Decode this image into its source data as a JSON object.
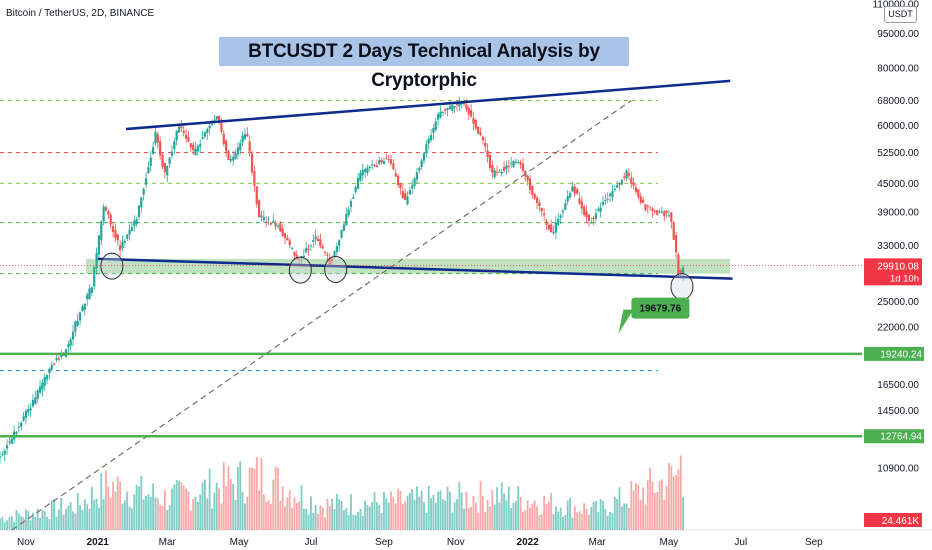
{
  "header": {
    "symbol_title": "Bitcoin / TetherUS, 2D, BINANCE",
    "analysis_title": "BTCUSDT 2 Days Technical Analysis by Cryptorphic",
    "currency_button": "USDT"
  },
  "colors": {
    "up": "#26a69a",
    "down": "#ef5350",
    "trendline": "#0d2a8c",
    "support_zone": "#a5d6a7",
    "green_level": "#4caf50",
    "title_bg": "#a9c4e6",
    "price_tag": "#f23645"
  },
  "chart_data": {
    "type": "candlestick",
    "title": "BTCUSDT 2 Days Technical Analysis by Cryptorphic",
    "subtitle": "Bitcoin / TetherUS, 2D, BINANCE",
    "y_scale": "log",
    "ylim": [
      8000,
      110000
    ],
    "y_ticks": [
      {
        "value": 110000,
        "label": "110000.00"
      },
      {
        "value": 95000,
        "label": "95000.00"
      },
      {
        "value": 80000,
        "label": "80000.00"
      },
      {
        "value": 68000,
        "label": "68000.00"
      },
      {
        "value": 60000,
        "label": "60000.00"
      },
      {
        "value": 52500,
        "label": "52500.00"
      },
      {
        "value": 45000,
        "label": "45000.00"
      },
      {
        "value": 39000,
        "label": "39000.00"
      },
      {
        "value": 33000,
        "label": "33000.00"
      },
      {
        "value": 25000,
        "label": "25000.00"
      },
      {
        "value": 22000,
        "label": "22000.00"
      },
      {
        "value": 16500,
        "label": "16500.00"
      },
      {
        "value": 14500,
        "label": "14500.00"
      },
      {
        "value": 10900,
        "label": "10900.00"
      }
    ],
    "x_range": [
      "2020-10-10",
      "2022-09-30"
    ],
    "x_ticks": [
      {
        "date": "2020-11-01",
        "label": "Nov",
        "bold": false
      },
      {
        "date": "2021-01-01",
        "label": "2021",
        "bold": true
      },
      {
        "date": "2021-03-01",
        "label": "Mar",
        "bold": false
      },
      {
        "date": "2021-05-01",
        "label": "May",
        "bold": false
      },
      {
        "date": "2021-07-01",
        "label": "Jul",
        "bold": false
      },
      {
        "date": "2021-09-01",
        "label": "Sep",
        "bold": false
      },
      {
        "date": "2021-11-01",
        "label": "Nov",
        "bold": false
      },
      {
        "date": "2022-01-01",
        "label": "2022",
        "bold": true
      },
      {
        "date": "2022-03-01",
        "label": "Mar",
        "bold": false
      },
      {
        "date": "2022-05-01",
        "label": "May",
        "bold": false
      },
      {
        "date": "2022-07-01",
        "label": "Jul",
        "bold": false
      },
      {
        "date": "2022-09-01",
        "label": "Sep",
        "bold": false
      }
    ],
    "price_path": [
      {
        "date": "2020-10-10",
        "price": 11300
      },
      {
        "date": "2020-10-25",
        "price": 13100
      },
      {
        "date": "2020-11-10",
        "price": 15300
      },
      {
        "date": "2020-11-25",
        "price": 18300
      },
      {
        "date": "2020-12-05",
        "price": 19100
      },
      {
        "date": "2020-12-17",
        "price": 23000
      },
      {
        "date": "2020-12-29",
        "price": 27000
      },
      {
        "date": "2021-01-08",
        "price": 40500
      },
      {
        "date": "2021-01-22",
        "price": 32500
      },
      {
        "date": "2021-02-05",
        "price": 38000
      },
      {
        "date": "2021-02-21",
        "price": 57500
      },
      {
        "date": "2021-03-01",
        "price": 47000
      },
      {
        "date": "2021-03-13",
        "price": 60500
      },
      {
        "date": "2021-03-25",
        "price": 52500
      },
      {
        "date": "2021-04-14",
        "price": 63500
      },
      {
        "date": "2021-04-25",
        "price": 49500
      },
      {
        "date": "2021-05-09",
        "price": 58500
      },
      {
        "date": "2021-05-20",
        "price": 38000
      },
      {
        "date": "2021-06-05",
        "price": 36500
      },
      {
        "date": "2021-06-22",
        "price": 30500
      },
      {
        "date": "2021-07-07",
        "price": 34500
      },
      {
        "date": "2021-07-20",
        "price": 30200
      },
      {
        "date": "2021-08-14",
        "price": 47500
      },
      {
        "date": "2021-09-07",
        "price": 51000
      },
      {
        "date": "2021-09-21",
        "price": 41000
      },
      {
        "date": "2021-10-20",
        "price": 64000
      },
      {
        "date": "2021-11-10",
        "price": 67500
      },
      {
        "date": "2021-11-27",
        "price": 55000
      },
      {
        "date": "2021-12-04",
        "price": 47000
      },
      {
        "date": "2021-12-27",
        "price": 50500
      },
      {
        "date": "2022-01-10",
        "price": 41000
      },
      {
        "date": "2022-01-24",
        "price": 35000
      },
      {
        "date": "2022-02-10",
        "price": 44500
      },
      {
        "date": "2022-02-24",
        "price": 37000
      },
      {
        "date": "2022-03-28",
        "price": 47500
      },
      {
        "date": "2022-04-12",
        "price": 40000
      },
      {
        "date": "2022-04-24",
        "price": 39000
      },
      {
        "date": "2022-05-04",
        "price": 38500
      },
      {
        "date": "2022-05-08",
        "price": 33000
      },
      {
        "date": "2022-05-12",
        "price": 27500
      },
      {
        "date": "2022-05-14",
        "price": 29910.08
      }
    ],
    "volume_path": [
      {
        "date": "2020-10-10",
        "rel": 0.12
      },
      {
        "date": "2020-12-15",
        "rel": 0.25
      },
      {
        "date": "2021-01-10",
        "rel": 0.45
      },
      {
        "date": "2021-03-01",
        "rel": 0.32
      },
      {
        "date": "2021-05-20",
        "rel": 0.55
      },
      {
        "date": "2021-07-10",
        "rel": 0.25
      },
      {
        "date": "2021-09-10",
        "rel": 0.28
      },
      {
        "date": "2021-12-05",
        "rel": 0.35
      },
      {
        "date": "2022-03-01",
        "rel": 0.2
      },
      {
        "date": "2022-05-09",
        "rel": 0.55
      },
      {
        "date": "2022-05-12",
        "rel": 1.0
      },
      {
        "date": "2022-05-14",
        "rel": 0.15
      }
    ],
    "volume_label": "24.461K",
    "dashed_levels": [
      {
        "price": 68000,
        "color": "#8bc34a"
      },
      {
        "price": 52500,
        "color": "#ef5350"
      },
      {
        "price": 45000,
        "color": "#8bc34a"
      },
      {
        "price": 37000,
        "color": "#4caf50"
      },
      {
        "price": 28700,
        "color": "#4caf50"
      },
      {
        "price": 17700,
        "color": "#2196f3"
      }
    ],
    "horizontal_levels": [
      {
        "price": 19240.24,
        "label": "19240.24"
      },
      {
        "price": 12764.94,
        "label": "12764.94"
      }
    ],
    "support_zone": {
      "from_date": "2020-12-22",
      "to_date": "2022-06-22",
      "low": 28700,
      "high": 30900
    },
    "trendlines": [
      {
        "from": {
          "date": "2021-01-25",
          "price": 59000
        },
        "to": {
          "date": "2022-06-22",
          "price": 75000
        }
      },
      {
        "from": {
          "date": "2021-01-01",
          "price": 30900
        },
        "to": {
          "date": "2022-06-24",
          "price": 28000
        }
      }
    ],
    "diagonal_line": {
      "from": {
        "date": "2020-10-20",
        "price": 8000
      },
      "to": {
        "date": "2022-03-30",
        "price": 68000
      }
    },
    "circles": [
      {
        "date": "2021-01-13",
        "price": 29800
      },
      {
        "date": "2021-06-22",
        "price": 29200
      },
      {
        "date": "2021-07-22",
        "price": 29300
      },
      {
        "date": "2022-05-12",
        "price": 26900
      }
    ],
    "callout": {
      "label": "19679.76",
      "date": "2022-03-25",
      "price": 21500
    },
    "last_price": {
      "value": 29910.08,
      "label": "29910.08",
      "countdown": "1d 10h"
    }
  }
}
